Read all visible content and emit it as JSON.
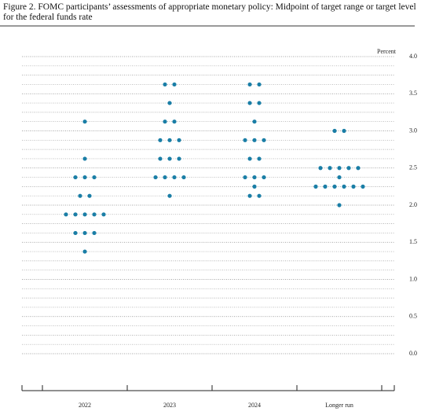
{
  "chart_data": {
    "type": "dot",
    "title": "Figure 2.  FOMC participants’ assessments of appropriate monetary policy: Midpoint of target range or target level for the federal funds rate",
    "y_label": "Percent",
    "categories": [
      "2022",
      "2023",
      "2024",
      "Longer run"
    ],
    "values": [
      [
        3.125,
        2.625,
        2.375,
        2.375,
        2.375,
        2.125,
        2.125,
        1.875,
        1.875,
        1.875,
        1.875,
        1.875,
        1.625,
        1.625,
        1.625,
        1.375
      ],
      [
        3.625,
        3.625,
        3.375,
        3.125,
        3.125,
        2.875,
        2.875,
        2.875,
        2.625,
        2.625,
        2.625,
        2.375,
        2.375,
        2.375,
        2.375,
        2.125
      ],
      [
        3.625,
        3.625,
        3.375,
        3.375,
        3.125,
        2.875,
        2.875,
        2.875,
        2.625,
        2.625,
        2.375,
        2.375,
        2.375,
        2.25,
        2.125,
        2.125
      ],
      [
        3.0,
        3.0,
        2.5,
        2.5,
        2.5,
        2.5,
        2.5,
        2.375,
        2.25,
        2.25,
        2.25,
        2.25,
        2.25,
        2.25,
        2.0
      ]
    ],
    "color": "#1a7ea6",
    "ylim": [
      0,
      4
    ],
    "yticks": [
      {
        "value": 0,
        "label": "0.0"
      },
      0.5,
      {
        "value": 1,
        "label": "1.0"
      },
      1.5,
      {
        "value": 2,
        "label": "2.0"
      },
      2.5,
      {
        "value": 3,
        "label": "3.0"
      },
      3.5,
      {
        "value": 4,
        "label": "4.0"
      }
    ],
    "minor_yticks": [
      0.125,
      0.25,
      0.375,
      0.625,
      0.75,
      0.875,
      1.125,
      1.25,
      1.375,
      1.625,
      1.75,
      1.875,
      2.125,
      2.25,
      2.375,
      2.625,
      2.75,
      2.875,
      3.125,
      3.25,
      3.375,
      3.625,
      3.75,
      3.875
    ],
    "grid": true
  }
}
